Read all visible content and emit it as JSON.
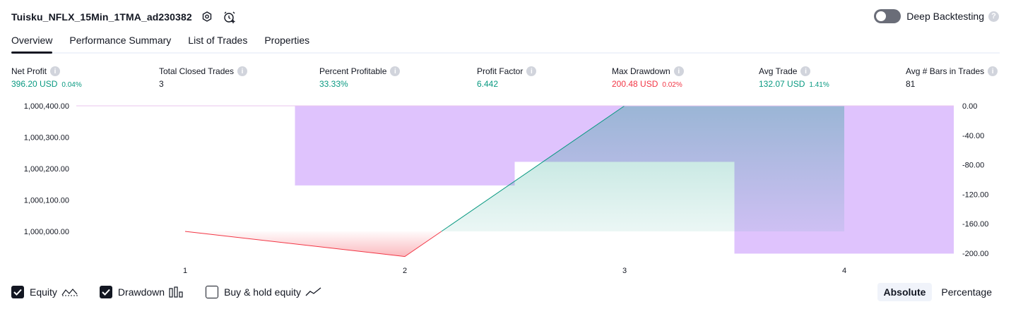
{
  "header": {
    "title": "Tuisku_NFLX_15Min_1TMA_ad230382",
    "settings_icon": "gear-icon",
    "alert_icon": "add-alert-icon"
  },
  "deep_backtesting": {
    "label": "Deep Backtesting",
    "enabled": false,
    "help": "?"
  },
  "tabs": [
    {
      "label": "Overview",
      "active": true
    },
    {
      "label": "Performance Summary",
      "active": false
    },
    {
      "label": "List of Trades",
      "active": false
    },
    {
      "label": "Properties",
      "active": false
    }
  ],
  "metrics": [
    {
      "label": "Net Profit",
      "value": "396.20 USD",
      "pct": "0.04%",
      "color": "#089981"
    },
    {
      "label": "Total Closed Trades",
      "value": "3",
      "pct": "",
      "color": "#131722"
    },
    {
      "label": "Percent Profitable",
      "value": "33.33%",
      "pct": "",
      "color": "#089981"
    },
    {
      "label": "Profit Factor",
      "value": "6.442",
      "pct": "",
      "color": "#089981"
    },
    {
      "label": "Max Drawdown",
      "value": "200.48 USD",
      "pct": "0.02%",
      "color": "#f23645"
    },
    {
      "label": "Avg Trade",
      "value": "132.07 USD",
      "pct": "1.41%",
      "color": "#089981"
    },
    {
      "label": "Avg # Bars in Trades",
      "value": "81",
      "pct": "",
      "color": "#131722"
    }
  ],
  "chart_data": {
    "type": "area",
    "x_ticks": [
      "1",
      "2",
      "3",
      "4"
    ],
    "left_axis": {
      "ticks": [
        "1,000,400.00",
        "1,000,300.00",
        "1,000,200.00",
        "1,000,100.00",
        "1,000,000.00"
      ],
      "ylim": [
        999920,
        1000400
      ]
    },
    "right_axis": {
      "ticks": [
        "0.00",
        "-40.00",
        "-80.00",
        "-120.00",
        "-160.00",
        "-200.00"
      ],
      "ylim": [
        -200,
        0
      ]
    },
    "equity": {
      "points": [
        {
          "x": 1,
          "y": 1000000
        },
        {
          "x": 2,
          "y": 999920
        },
        {
          "x": 3,
          "y": 1000400
        },
        {
          "x": 4,
          "y": 1000400
        }
      ],
      "line_color_loss": "#f23645",
      "line_color_gain": "#089981"
    },
    "drawdown": {
      "color": "#d9b8fd",
      "bars": [
        {
          "x_start": 1.5,
          "x_end": 2.5,
          "value": -108
        },
        {
          "x_start": 2.5,
          "x_end": 3.5,
          "value": -76
        },
        {
          "x_start": 3.5,
          "x_end": 4.5,
          "value": -200.48
        }
      ]
    },
    "initial_capital": 1000000
  },
  "legend": [
    {
      "label": "Equity",
      "checked": true,
      "icon": "equity-line-icon"
    },
    {
      "label": "Drawdown",
      "checked": true,
      "icon": "drawdown-bars-icon"
    },
    {
      "label": "Buy & hold equity",
      "checked": false,
      "icon": "buy-hold-line-icon"
    }
  ],
  "mode": {
    "options": [
      "Absolute",
      "Percentage"
    ],
    "selected": "Absolute"
  }
}
